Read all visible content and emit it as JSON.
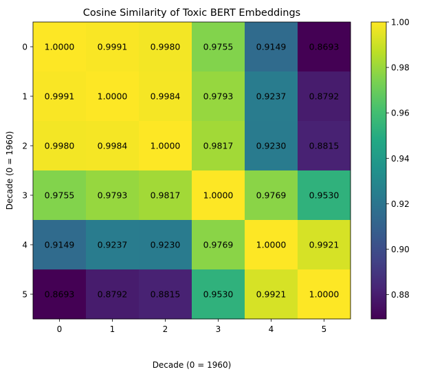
{
  "chart_data": {
    "type": "heatmap",
    "title": "Cosine Similarity of Toxic BERT Embeddings",
    "xlabel": "Decade (0 = 1960)",
    "ylabel": "Decade (0 = 1960)",
    "x_categories": [
      "0",
      "1",
      "2",
      "3",
      "4",
      "5"
    ],
    "y_categories": [
      "0",
      "1",
      "2",
      "3",
      "4",
      "5"
    ],
    "values": [
      [
        1.0,
        0.9991,
        0.998,
        0.9755,
        0.9149,
        0.8693
      ],
      [
        0.9991,
        1.0,
        0.9984,
        0.9793,
        0.9237,
        0.8792
      ],
      [
        0.998,
        0.9984,
        1.0,
        0.9817,
        0.923,
        0.8815
      ],
      [
        0.9755,
        0.9793,
        0.9817,
        1.0,
        0.9769,
        0.953
      ],
      [
        0.9149,
        0.9237,
        0.923,
        0.9769,
        1.0,
        0.9921
      ],
      [
        0.8693,
        0.8792,
        0.8815,
        0.953,
        0.9921,
        1.0
      ]
    ],
    "value_labels": [
      [
        "1.0000",
        "0.9991",
        "0.9980",
        "0.9755",
        "0.9149",
        "0.8693"
      ],
      [
        "0.9991",
        "1.0000",
        "0.9984",
        "0.9793",
        "0.9237",
        "0.8792"
      ],
      [
        "0.9980",
        "0.9984",
        "1.0000",
        "0.9817",
        "0.9230",
        "0.8815"
      ],
      [
        "0.9755",
        "0.9793",
        "0.9817",
        "1.0000",
        "0.9769",
        "0.9530"
      ],
      [
        "0.9149",
        "0.9237",
        "0.9230",
        "0.9769",
        "1.0000",
        "0.9921"
      ],
      [
        "0.8693",
        "0.8792",
        "0.8815",
        "0.9530",
        "0.9921",
        "1.0000"
      ]
    ],
    "colormap": "viridis",
    "colorbar": {
      "vmin": 0.8693,
      "vmax": 1.0,
      "ticks": [
        0.88,
        0.9,
        0.92,
        0.94,
        0.96,
        0.98,
        1.0
      ],
      "tick_labels": [
        "0.88",
        "0.90",
        "0.92",
        "0.94",
        "0.96",
        "0.98",
        "1.00"
      ]
    },
    "grid": false,
    "legend": "none"
  }
}
